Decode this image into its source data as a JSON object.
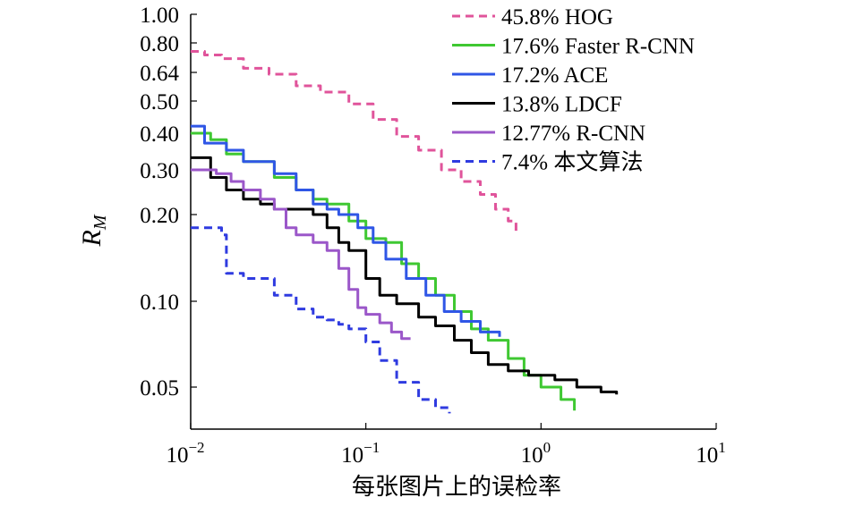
{
  "chart_data": {
    "type": "line",
    "xlabel": "每张图片上的误检率",
    "ylabel_main": "R",
    "ylabel_sub": "M",
    "x_scale": "log",
    "xlim": [
      0.01,
      10
    ],
    "ylim": [
      0.035,
      1.0
    ],
    "x_ticks": [
      {
        "value": 0.01,
        "base": "10",
        "exp": "−2"
      },
      {
        "value": 0.1,
        "base": "10",
        "exp": "−1"
      },
      {
        "value": 1,
        "base": "10",
        "exp": "0"
      },
      {
        "value": 10,
        "base": "10",
        "exp": "1"
      }
    ],
    "y_ticks": [
      {
        "value": 1.0,
        "label": "1.00"
      },
      {
        "value": 0.8,
        "label": "0.80"
      },
      {
        "value": 0.64,
        "label": "0.64"
      },
      {
        "value": 0.5,
        "label": "0.50"
      },
      {
        "value": 0.4,
        "label": "0.40"
      },
      {
        "value": 0.3,
        "label": "0.30"
      },
      {
        "value": 0.2,
        "label": "0.20"
      },
      {
        "value": 0.1,
        "label": "0.10"
      },
      {
        "value": 0.05,
        "label": "0.05"
      }
    ],
    "legend": "top-right",
    "series": [
      {
        "name": "45.8% HOG",
        "color": "#e0549b",
        "dash": true,
        "points": [
          [
            0.01,
            0.75
          ],
          [
            0.012,
            0.73
          ],
          [
            0.015,
            0.71
          ],
          [
            0.02,
            0.66
          ],
          [
            0.028,
            0.63
          ],
          [
            0.04,
            0.57
          ],
          [
            0.055,
            0.54
          ],
          [
            0.08,
            0.49
          ],
          [
            0.11,
            0.44
          ],
          [
            0.15,
            0.39
          ],
          [
            0.2,
            0.35
          ],
          [
            0.27,
            0.3
          ],
          [
            0.35,
            0.27
          ],
          [
            0.45,
            0.24
          ],
          [
            0.55,
            0.21
          ],
          [
            0.65,
            0.19
          ],
          [
            0.72,
            0.17
          ]
        ]
      },
      {
        "name": "17.6% Faster R-CNN",
        "color": "#3fc832",
        "dash": false,
        "points": [
          [
            0.01,
            0.4
          ],
          [
            0.013,
            0.38
          ],
          [
            0.016,
            0.34
          ],
          [
            0.02,
            0.32
          ],
          [
            0.03,
            0.28
          ],
          [
            0.04,
            0.25
          ],
          [
            0.05,
            0.23
          ],
          [
            0.06,
            0.22
          ],
          [
            0.08,
            0.19
          ],
          [
            0.1,
            0.165
          ],
          [
            0.13,
            0.16
          ],
          [
            0.16,
            0.135
          ],
          [
            0.2,
            0.12
          ],
          [
            0.25,
            0.105
          ],
          [
            0.32,
            0.092
          ],
          [
            0.4,
            0.08
          ],
          [
            0.5,
            0.073
          ],
          [
            0.65,
            0.063
          ],
          [
            0.8,
            0.055
          ],
          [
            1.0,
            0.05
          ],
          [
            1.3,
            0.045
          ],
          [
            1.55,
            0.041
          ]
        ]
      },
      {
        "name": "17.2% ACE",
        "color": "#2f56e6",
        "dash": false,
        "points": [
          [
            0.01,
            0.42
          ],
          [
            0.012,
            0.37
          ],
          [
            0.016,
            0.35
          ],
          [
            0.02,
            0.32
          ],
          [
            0.03,
            0.29
          ],
          [
            0.04,
            0.25
          ],
          [
            0.05,
            0.22
          ],
          [
            0.06,
            0.21
          ],
          [
            0.07,
            0.2
          ],
          [
            0.09,
            0.18
          ],
          [
            0.11,
            0.16
          ],
          [
            0.13,
            0.14
          ],
          [
            0.17,
            0.12
          ],
          [
            0.22,
            0.105
          ],
          [
            0.28,
            0.092
          ],
          [
            0.35,
            0.085
          ],
          [
            0.45,
            0.078
          ],
          [
            0.58,
            0.075
          ]
        ]
      },
      {
        "name": "13.8% LDCF",
        "color": "#000000",
        "dash": false,
        "points": [
          [
            0.01,
            0.33
          ],
          [
            0.013,
            0.28
          ],
          [
            0.016,
            0.25
          ],
          [
            0.02,
            0.23
          ],
          [
            0.025,
            0.22
          ],
          [
            0.03,
            0.21
          ],
          [
            0.04,
            0.21
          ],
          [
            0.05,
            0.2
          ],
          [
            0.06,
            0.18
          ],
          [
            0.07,
            0.16
          ],
          [
            0.08,
            0.15
          ],
          [
            0.1,
            0.12
          ],
          [
            0.12,
            0.105
          ],
          [
            0.15,
            0.098
          ],
          [
            0.2,
            0.088
          ],
          [
            0.25,
            0.082
          ],
          [
            0.32,
            0.073
          ],
          [
            0.4,
            0.066
          ],
          [
            0.5,
            0.06
          ],
          [
            0.65,
            0.057
          ],
          [
            0.85,
            0.055
          ],
          [
            1.2,
            0.053
          ],
          [
            1.6,
            0.05
          ],
          [
            2.2,
            0.048
          ],
          [
            2.7,
            0.047
          ]
        ]
      },
      {
        "name": "12.77% R-CNN",
        "color": "#9b57c9",
        "dash": false,
        "points": [
          [
            0.01,
            0.3
          ],
          [
            0.014,
            0.29
          ],
          [
            0.017,
            0.27
          ],
          [
            0.02,
            0.25
          ],
          [
            0.025,
            0.23
          ],
          [
            0.03,
            0.21
          ],
          [
            0.035,
            0.18
          ],
          [
            0.04,
            0.17
          ],
          [
            0.05,
            0.16
          ],
          [
            0.06,
            0.15
          ],
          [
            0.07,
            0.13
          ],
          [
            0.08,
            0.11
          ],
          [
            0.09,
            0.095
          ],
          [
            0.1,
            0.09
          ],
          [
            0.12,
            0.084
          ],
          [
            0.14,
            0.078
          ],
          [
            0.16,
            0.074
          ],
          [
            0.18,
            0.074
          ]
        ]
      },
      {
        "name": "7.4% 本文算法",
        "color": "#2f3be0",
        "dash": true,
        "points": [
          [
            0.01,
            0.18
          ],
          [
            0.015,
            0.17
          ],
          [
            0.016,
            0.125
          ],
          [
            0.02,
            0.12
          ],
          [
            0.03,
            0.105
          ],
          [
            0.04,
            0.094
          ],
          [
            0.05,
            0.088
          ],
          [
            0.06,
            0.086
          ],
          [
            0.07,
            0.083
          ],
          [
            0.08,
            0.08
          ],
          [
            0.1,
            0.072
          ],
          [
            0.12,
            0.062
          ],
          [
            0.15,
            0.052
          ],
          [
            0.2,
            0.045
          ],
          [
            0.25,
            0.042
          ],
          [
            0.3,
            0.04
          ]
        ]
      }
    ]
  }
}
